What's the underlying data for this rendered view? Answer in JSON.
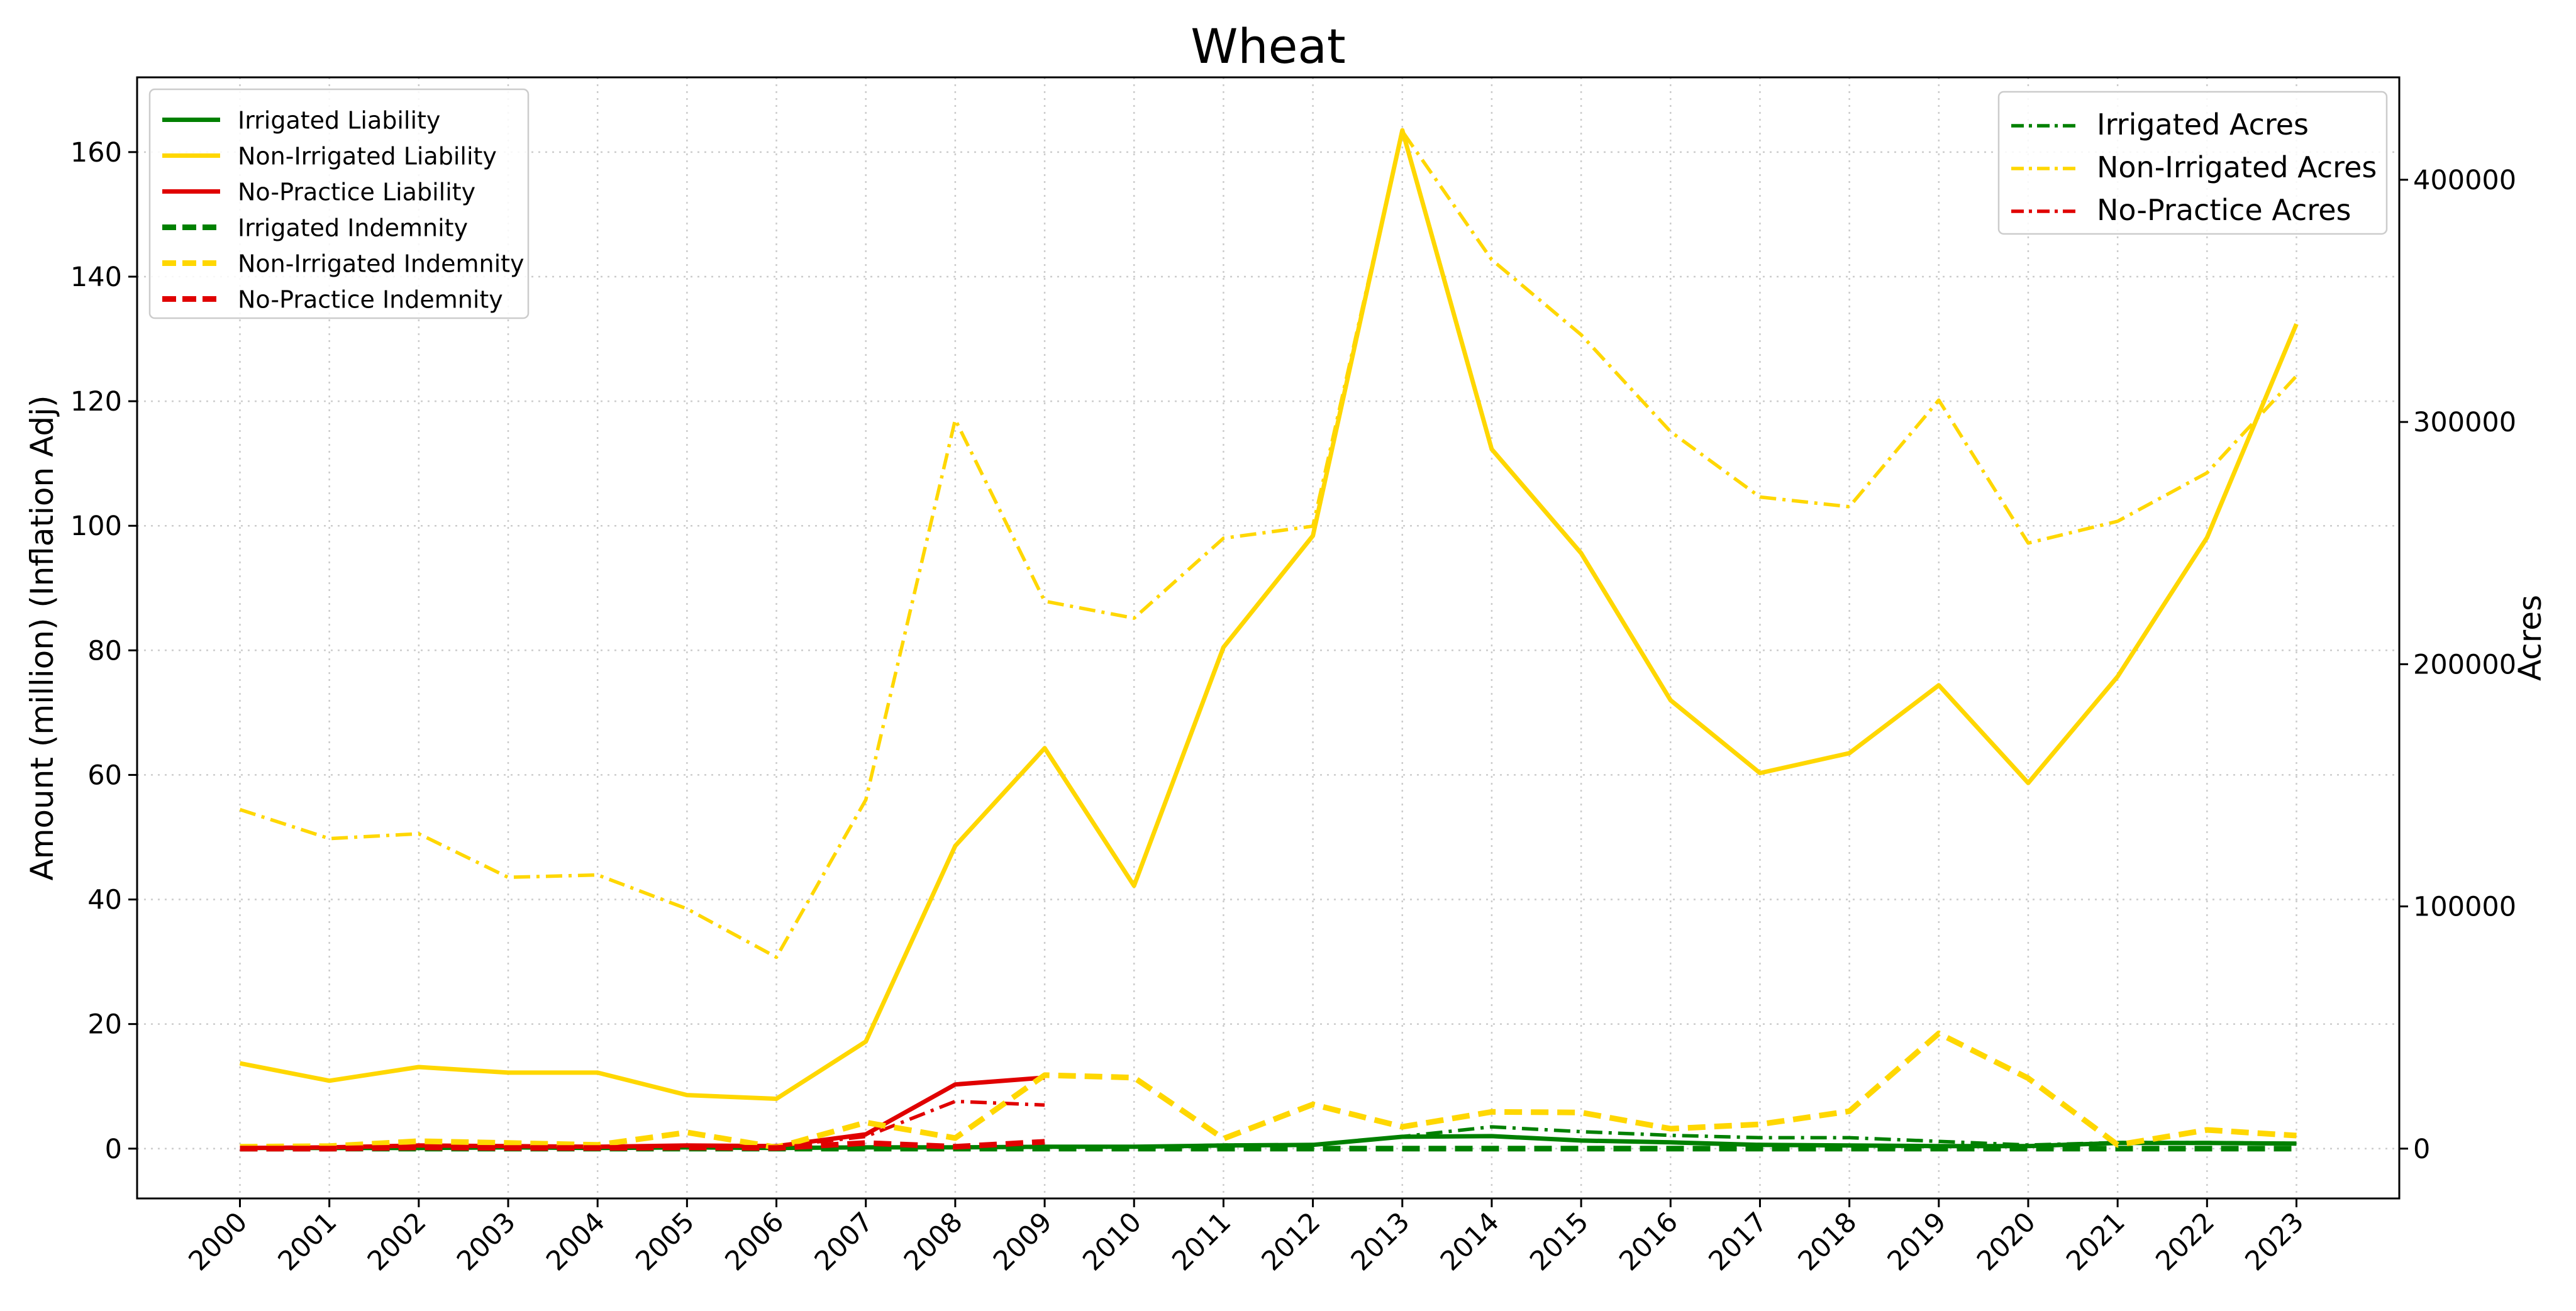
{
  "chart_data": {
    "type": "line",
    "title": "Wheat",
    "xlabel": "",
    "ylabel": "Amount (million) (Inflation Adj)",
    "y2label": "Acres",
    "x": [
      2000,
      2001,
      2002,
      2003,
      2004,
      2005,
      2006,
      2007,
      2008,
      2009,
      2010,
      2011,
      2012,
      2013,
      2014,
      2015,
      2016,
      2017,
      2018,
      2019,
      2020,
      2021,
      2022,
      2023
    ],
    "xtick_labels": [
      "2000",
      "2001",
      "2002",
      "2003",
      "2004",
      "2005",
      "2006",
      "2007",
      "2008",
      "2009",
      "2010",
      "2011",
      "2012",
      "2013",
      "2014",
      "2015",
      "2016",
      "2017",
      "2018",
      "2019",
      "2020",
      "2021",
      "2022",
      "2023"
    ],
    "ylim": [
      -8,
      172
    ],
    "yticks": [
      0,
      20,
      40,
      60,
      80,
      100,
      120,
      140,
      160
    ],
    "ytick_labels": [
      "0",
      "20",
      "40",
      "60",
      "80",
      "100",
      "120",
      "140",
      "160"
    ],
    "y2lim": [
      -20571,
      442286
    ],
    "y2ticks": [
      0,
      100000,
      200000,
      300000,
      400000
    ],
    "y2tick_labels": [
      "0",
      "100000",
      "200000",
      "300000",
      "400000"
    ],
    "grid": true,
    "legend_left_placement": "upper-left",
    "legend_right_placement": "upper-right",
    "colors": {
      "irrigated": "#008000",
      "non_irrigated": "#FFD700",
      "no_practice": "#E00000"
    },
    "series": [
      {
        "name": "Irrigated Liability",
        "axis": "left",
        "color": "#008000",
        "style": "solid",
        "values": [
          0.1,
          0.1,
          0.1,
          0.2,
          0.1,
          0.2,
          0.1,
          0.2,
          0.2,
          0.3,
          0.3,
          0.5,
          0.6,
          1.9,
          2.0,
          1.3,
          1.0,
          0.6,
          0.5,
          0.4,
          0.4,
          0.9,
          0.9,
          0.8
        ]
      },
      {
        "name": "Non-Irrigated Liability",
        "axis": "left",
        "color": "#FFD700",
        "style": "solid",
        "values": [
          13.7,
          10.9,
          13.1,
          12.2,
          12.2,
          8.6,
          8.0,
          17.2,
          48.6,
          64.3,
          42.2,
          80.5,
          98.4,
          163.5,
          112.3,
          95.6,
          72.0,
          60.3,
          63.5,
          74.4,
          58.7,
          75.8,
          98.1,
          132.4
        ]
      },
      {
        "name": "No-Practice Liability",
        "axis": "left",
        "color": "#E00000",
        "style": "solid",
        "values": [
          0.1,
          0.2,
          0.5,
          0.4,
          0.3,
          0.5,
          0.4,
          2.3,
          10.3,
          11.4,
          null,
          null,
          null,
          null,
          null,
          null,
          null,
          null,
          null,
          null,
          null,
          null,
          null,
          null
        ]
      },
      {
        "name": "Irrigated Indemnity",
        "axis": "left",
        "color": "#008000",
        "style": "dashed",
        "values": [
          0.0,
          0.0,
          0.0,
          0.0,
          0.0,
          0.0,
          0.0,
          0.0,
          0.0,
          0.0,
          0.0,
          0.0,
          0.0,
          0.0,
          0.0,
          0.0,
          0.0,
          0.0,
          0.0,
          0.0,
          0.0,
          0.0,
          0.0,
          0.0
        ]
      },
      {
        "name": "Non-Irrigated Indemnity",
        "axis": "left",
        "color": "#FFD700",
        "style": "dashed",
        "values": [
          0.3,
          0.4,
          1.2,
          0.9,
          0.6,
          2.6,
          0.2,
          4.2,
          1.7,
          11.8,
          11.4,
          1.6,
          7.1,
          3.5,
          5.9,
          5.8,
          3.2,
          3.9,
          6.0,
          18.5,
          11.3,
          0.6,
          3.0,
          2.1
        ]
      },
      {
        "name": "No-Practice Indemnity",
        "axis": "left",
        "color": "#E00000",
        "style": "dashed",
        "values": [
          0.0,
          0.0,
          0.2,
          0.1,
          0.1,
          0.2,
          0.1,
          0.9,
          0.3,
          1.1,
          null,
          null,
          null,
          null,
          null,
          null,
          null,
          null,
          null,
          null,
          null,
          null,
          null,
          null
        ]
      },
      {
        "name": "Irrigated Acres",
        "axis": "right",
        "color": "#008000",
        "style": "dashdot",
        "values": [
          300,
          300,
          400,
          400,
          300,
          400,
          300,
          400,
          700,
          800,
          700,
          1500,
          1600,
          5000,
          9000,
          7000,
          5500,
          4500,
          4500,
          3000,
          1500,
          2500,
          2500,
          2200
        ]
      },
      {
        "name": "Non-Irrigated Acres",
        "axis": "right",
        "color": "#FFD700",
        "style": "dashdot",
        "values": [
          140000,
          128000,
          130000,
          112000,
          113000,
          99000,
          79000,
          144000,
          301000,
          226000,
          219000,
          252000,
          257000,
          420000,
          367000,
          336000,
          296000,
          269000,
          265000,
          309000,
          250000,
          259000,
          279000,
          319000
        ]
      },
      {
        "name": "No-Practice Acres",
        "axis": "right",
        "color": "#E00000",
        "style": "dashdot",
        "values": [
          400,
          500,
          1000,
          900,
          700,
          1200,
          900,
          5000,
          19500,
          18000,
          null,
          null,
          null,
          null,
          null,
          null,
          null,
          null,
          null,
          null,
          null,
          null,
          null,
          null
        ]
      }
    ]
  }
}
